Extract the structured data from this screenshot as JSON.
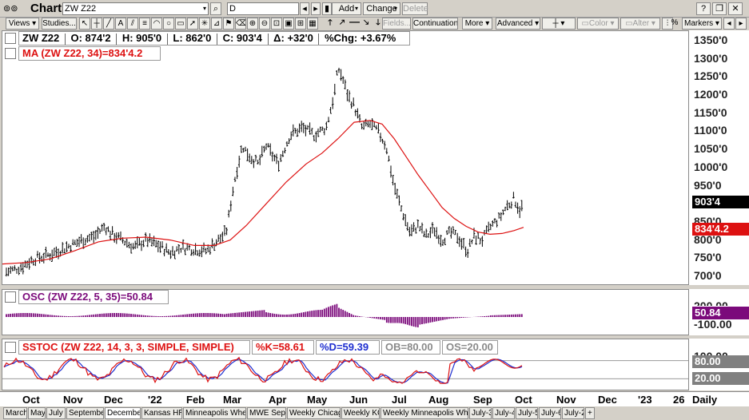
{
  "titlebar": {
    "logo": "⊚⊚",
    "title": "Chart",
    "symbol": "ZW Z22",
    "interval": "D",
    "add_label": "Add",
    "change_label": "Change",
    "delete_label": "Delete"
  },
  "toolbar": {
    "views_label": "Views",
    "studies_label": "Studies...",
    "fields_label": "Fields...",
    "continuation_label": "Continuation",
    "more_label": "More",
    "advanced_label": "Advanced",
    "color_label": "Color",
    "alter_label": "Alter",
    "percent_label": "%",
    "markers_label": "Markers"
  },
  "price_panel": {
    "legend_ohlc": {
      "symbol": "ZW Z22",
      "open": "O: 874'2",
      "high": "H: 905'0",
      "low": "L: 862'0",
      "close": "C: 903'4",
      "change": "Δ: +32'0",
      "pct_change": "%Chg: +3.67%"
    },
    "legend_ma": "MA (ZW Z22, 34)=834'4.2",
    "y_labels": [
      "1350'0",
      "1300'0",
      "1250'0",
      "1200'0",
      "1150'0",
      "1100'0",
      "1050'0",
      "1000'0",
      "950'0",
      "900'0",
      "850'0",
      "800'0",
      "750'0",
      "700'0"
    ],
    "last_price_tag": "903'4",
    "ma_tag": "834'4.2",
    "price_color": "#000000",
    "ma_color": "#dd1111"
  },
  "osc_panel": {
    "legend": "OSC (ZW Z22, 5, 35)=50.84",
    "y_labels": [
      "200.00",
      "-100.00"
    ],
    "value_tag": "50.84",
    "color": "#7b0a7b"
  },
  "stoch_panel": {
    "legend_name": "SSTOC (ZW Z22, 14, 3, 3, SIMPLE, SIMPLE)",
    "k_label": "%K=58.61",
    "d_label": "%D=59.39",
    "ob_label": "OB=80.00",
    "os_label": "OS=20.00",
    "y_labels": [
      "100.00"
    ],
    "ob_tag": "80.00",
    "os_tag": "20.00",
    "k_color": "#dd1111",
    "d_color": "#1f2fd0"
  },
  "x_axis": {
    "labels": [
      "Oct",
      "Nov",
      "Dec",
      "'22",
      "Feb",
      "Mar",
      "Apr",
      "May",
      "Jun",
      "Jul",
      "Aug",
      "Sep",
      "Oct",
      "Nov",
      "Dec",
      "'23",
      "26"
    ],
    "period": "Daily"
  },
  "tabs": [
    "March",
    "May",
    "July",
    "September",
    "December",
    "Kansas HRW",
    "Minneapolis Wheat",
    "MWE Sept",
    "Weekly Chicago",
    "Weekly KC",
    "Weekly Minneapolis Wheat",
    "July-3",
    "July-4",
    "July-5",
    "July-6",
    "July-2",
    "+"
  ],
  "active_tab": "December",
  "chart_data": [
    {
      "type": "line",
      "series": [
        {
          "name": "ZW Z22",
          "points": [
            [
              "Sep 2021",
              715
            ],
            [
              "Oct 2021",
              745
            ],
            [
              "Nov 2021",
              795
            ],
            [
              "Dec 2021",
              840
            ],
            [
              "Dec 2021",
              800
            ],
            [
              "Jan 2022",
              780
            ],
            [
              "Jan 2022",
              760
            ],
            [
              "Feb 2022",
              790
            ],
            [
              "Feb 2022",
              800
            ],
            [
              "Mar 2022",
              1060
            ],
            [
              "Mar 2022",
              1010
            ],
            [
              "Apr 2022",
              1070
            ],
            [
              "Apr 2022",
              1090
            ],
            [
              "May 2022",
              1110
            ],
            [
              "May 2022",
              1270
            ],
            [
              "Jun 2022",
              1120
            ],
            [
              "Jun 2022",
              1095
            ],
            [
              "Jul 2022",
              910
            ],
            [
              "Jul 2022",
              820
            ],
            [
              "Aug 2022",
              805
            ],
            [
              "Aug 2022",
              790
            ],
            [
              "Sep 2022",
              810
            ],
            [
              "Sep 2022",
              870
            ],
            [
              "Oct 2022",
              903.5
            ]
          ]
        },
        {
          "name": "MA (ZW Z22, 34)",
          "points": [
            [
              "Sep 2021",
              735
            ],
            [
              "Nov 2021",
              750
            ],
            [
              "Dec 2021",
              800
            ],
            [
              "Jan 2022",
              790
            ],
            [
              "Feb 2022",
              775
            ],
            [
              "Mar 2022",
              830
            ],
            [
              "Apr 2022",
              980
            ],
            [
              "May 2022",
              1060
            ],
            [
              "Jun 2022",
              1130
            ],
            [
              "Jul 2022",
              1030
            ],
            [
              "Aug 2022",
              860
            ],
            [
              "Sep 2022",
              815
            ],
            [
              "Oct 2022",
              834.5
            ]
          ]
        }
      ],
      "ylim": [
        680,
        1370
      ]
    }
  ]
}
